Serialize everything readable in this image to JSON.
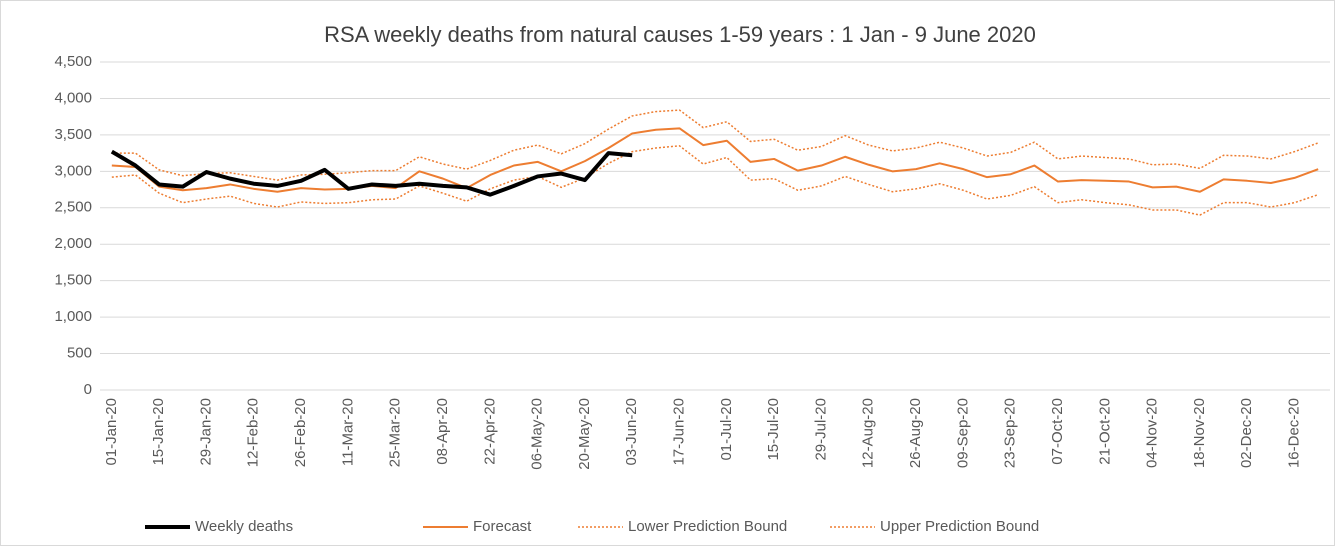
{
  "chart_data": {
    "type": "line",
    "title": "RSA weekly deaths from natural causes 1-59 years : 1 Jan - 9 June 2020",
    "categories": [
      "01-Jan-20",
      null,
      "15-Jan-20",
      null,
      "29-Jan-20",
      null,
      "12-Feb-20",
      null,
      "26-Feb-20",
      null,
      "11-Mar-20",
      null,
      "25-Mar-20",
      null,
      "08-Apr-20",
      null,
      "22-Apr-20",
      null,
      "06-May-20",
      null,
      "20-May-20",
      null,
      "03-Jun-20",
      null,
      "17-Jun-20",
      null,
      "01-Jul-20",
      null,
      "15-Jul-20",
      null,
      "29-Jul-20",
      null,
      "12-Aug-20",
      null,
      "26-Aug-20",
      null,
      "09-Sep-20",
      null,
      "23-Sep-20",
      null,
      "07-Oct-20",
      null,
      "21-Oct-20",
      null,
      "04-Nov-20",
      null,
      "18-Nov-20",
      null,
      "02-Dec-20",
      null,
      "16-Dec-20",
      null
    ],
    "series": [
      {
        "name": "Weekly deaths",
        "color": "#000000",
        "width": 4,
        "dash": "solid",
        "values": [
          3270,
          3080,
          2820,
          2790,
          2990,
          2900,
          2830,
          2800,
          2870,
          3020,
          2760,
          2820,
          2800,
          2830,
          2800,
          2780,
          2680,
          2800,
          2930,
          2970,
          2880,
          3250,
          3220,
          null,
          null,
          null,
          null,
          null,
          null,
          null,
          null,
          null,
          null,
          null,
          null,
          null,
          null,
          null,
          null,
          null,
          null,
          null,
          null,
          null,
          null,
          null,
          null,
          null,
          null,
          null,
          null,
          null
        ]
      },
      {
        "name": "Forecast",
        "color": "#ed7d31",
        "width": 2,
        "dash": "solid",
        "values": [
          3080,
          3060,
          2790,
          2740,
          2770,
          2820,
          2760,
          2720,
          2770,
          2750,
          2760,
          2800,
          2770,
          3000,
          2900,
          2770,
          2950,
          3080,
          3130,
          3000,
          3140,
          3320,
          3520,
          3570,
          3590,
          3360,
          3420,
          3130,
          3170,
          3010,
          3080,
          3200,
          3090,
          3000,
          3030,
          3110,
          3030,
          2920,
          2960,
          3080,
          2860,
          2880,
          2870,
          2860,
          2780,
          2790,
          2720,
          2890,
          2870,
          2840,
          2910,
          3030
        ]
      },
      {
        "name": "Lower Prediction Bound",
        "color": "#ed7d31",
        "width": 1.5,
        "dash": "dotted",
        "values": [
          2920,
          2950,
          2700,
          2570,
          2620,
          2660,
          2560,
          2510,
          2580,
          2560,
          2570,
          2610,
          2620,
          2800,
          2700,
          2590,
          2760,
          2880,
          2930,
          2780,
          2910,
          3110,
          3270,
          3320,
          3350,
          3100,
          3190,
          2880,
          2900,
          2740,
          2800,
          2930,
          2820,
          2720,
          2760,
          2830,
          2740,
          2620,
          2670,
          2790,
          2570,
          2610,
          2570,
          2540,
          2470,
          2470,
          2400,
          2570,
          2570,
          2510,
          2570,
          2680
        ]
      },
      {
        "name": "Upper Prediction Bound",
        "color": "#ed7d31",
        "width": 1.5,
        "dash": "dotted",
        "values": [
          3250,
          3250,
          3020,
          2940,
          2970,
          2980,
          2930,
          2880,
          2950,
          2960,
          2980,
          3010,
          3010,
          3200,
          3100,
          3030,
          3150,
          3290,
          3360,
          3240,
          3380,
          3580,
          3760,
          3820,
          3840,
          3600,
          3680,
          3410,
          3440,
          3290,
          3340,
          3490,
          3360,
          3280,
          3320,
          3400,
          3320,
          3210,
          3260,
          3400,
          3170,
          3210,
          3190,
          3170,
          3090,
          3100,
          3040,
          3220,
          3210,
          3170,
          3270,
          3390
        ]
      }
    ],
    "ylim": [
      0,
      4500
    ],
    "yticks": [
      0,
      500,
      {
        "value": 1000,
        "label": "1,000"
      },
      {
        "value": 1500,
        "label": "1,500"
      },
      {
        "value": 2000,
        "label": "2,000"
      },
      {
        "value": 2500,
        "label": "2,500"
      },
      {
        "value": 3000,
        "label": "3,000"
      },
      {
        "value": 3500,
        "label": "3,500"
      },
      {
        "value": 4000,
        "label": "4,000"
      },
      {
        "value": 4500,
        "label": "4,500"
      }
    ],
    "grid": true,
    "legend": "bottom"
  }
}
